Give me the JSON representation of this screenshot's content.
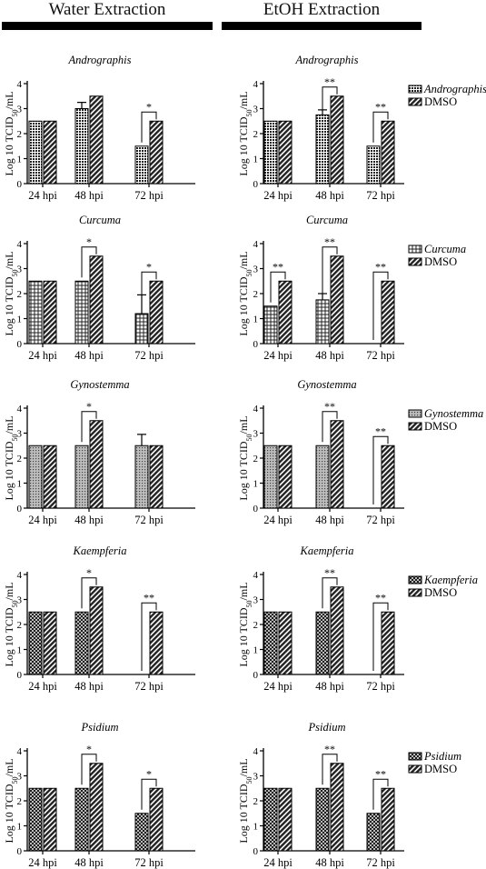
{
  "headers": {
    "water": "Water Extraction",
    "etoh": "EtOH Extraction"
  },
  "legend_dmso": "DMSO",
  "chart_data": [
    {
      "type": "bar",
      "panel": "water-andrographis",
      "title": "Andrographis",
      "ylabel": "Log 10 TCID50/mL",
      "ylim": [
        0,
        4
      ],
      "yticks": [
        "0",
        "1",
        "2",
        "3",
        "4"
      ],
      "categories": [
        "24 hpi",
        "48 hpi",
        "72 hpi"
      ],
      "series": [
        {
          "values": [
            2.5,
            3.0,
            1.5
          ],
          "errors": [
            0,
            0.25,
            0
          ]
        },
        {
          "values": [
            2.5,
            3.5,
            2.5
          ],
          "errors": [
            0,
            0,
            0
          ]
        }
      ],
      "significance": [
        {
          "category": "72 hpi",
          "label": "*"
        }
      ]
    },
    {
      "type": "bar",
      "panel": "etoh-andrographis",
      "title": "Andrographis",
      "ylabel": "Log 10 TCID50/mL",
      "ylim": [
        0,
        4
      ],
      "yticks": [
        "0",
        "1",
        "2",
        "3",
        "4"
      ],
      "categories": [
        "24 hpi",
        "48 hpi",
        "72 hpi"
      ],
      "series": [
        {
          "name": "Andrographis",
          "values": [
            2.5,
            2.75,
            1.5
          ],
          "errors": [
            0,
            0.2,
            0
          ]
        },
        {
          "name": "DMSO",
          "values": [
            2.5,
            3.5,
            2.5
          ],
          "errors": [
            0,
            0,
            0
          ]
        }
      ],
      "significance": [
        {
          "category": "48 hpi",
          "label": "**"
        },
        {
          "category": "72 hpi",
          "label": "**"
        }
      ]
    },
    {
      "type": "bar",
      "panel": "water-curcuma",
      "title": "Curcuma",
      "ylabel": "Log 10 TCID50/mL",
      "ylim": [
        0,
        4
      ],
      "yticks": [
        "0",
        "1",
        "2",
        "3",
        "4"
      ],
      "categories": [
        "24 hpi",
        "48 hpi",
        "72 hpi"
      ],
      "series": [
        {
          "values": [
            2.5,
            2.5,
            1.2
          ],
          "errors": [
            0,
            0,
            0.75
          ]
        },
        {
          "values": [
            2.5,
            3.5,
            2.5
          ],
          "errors": [
            0,
            0,
            0
          ]
        }
      ],
      "significance": [
        {
          "category": "48 hpi",
          "label": "*"
        },
        {
          "category": "72 hpi",
          "label": "*"
        }
      ]
    },
    {
      "type": "bar",
      "panel": "etoh-curcuma",
      "title": "Curcuma",
      "ylabel": "Log 10 TCID50/mL",
      "ylim": [
        0,
        4
      ],
      "yticks": [
        "0",
        "1",
        "2",
        "3",
        "4"
      ],
      "categories": [
        "24 hpi",
        "48 hpi",
        "72 hpi"
      ],
      "series": [
        {
          "name": "Curcuma",
          "values": [
            1.5,
            1.75,
            0
          ],
          "errors": [
            0,
            0.25,
            0
          ]
        },
        {
          "name": "DMSO",
          "values": [
            2.5,
            3.5,
            2.5
          ],
          "errors": [
            0,
            0,
            0
          ]
        }
      ],
      "significance": [
        {
          "category": "24 hpi",
          "label": "**"
        },
        {
          "category": "48 hpi",
          "label": "**"
        },
        {
          "category": "72 hpi",
          "label": "**"
        }
      ]
    },
    {
      "type": "bar",
      "panel": "water-gynostemma",
      "title": "Gynostemma",
      "ylabel": "Log 10 TCID50/mL",
      "ylim": [
        0,
        4
      ],
      "yticks": [
        "0",
        "1",
        "2",
        "3",
        "4"
      ],
      "categories": [
        "24 hpi",
        "48 hpi",
        "72 hpi"
      ],
      "series": [
        {
          "values": [
            2.5,
            2.5,
            2.5
          ],
          "errors": [
            0,
            0,
            0.45
          ]
        },
        {
          "values": [
            2.5,
            3.5,
            2.5
          ],
          "errors": [
            0,
            0,
            0
          ]
        }
      ],
      "significance": [
        {
          "category": "48 hpi",
          "label": "*"
        }
      ]
    },
    {
      "type": "bar",
      "panel": "etoh-gynostemma",
      "title": "Gynostemma",
      "ylabel": "Log 10 TCID50/mL",
      "ylim": [
        0,
        4
      ],
      "yticks": [
        "0",
        "1",
        "2",
        "3",
        "4"
      ],
      "categories": [
        "24 hpi",
        "48 hpi",
        "72 hpi"
      ],
      "series": [
        {
          "name": "Gynostemma",
          "values": [
            2.5,
            2.5,
            0
          ],
          "errors": [
            0,
            0,
            0
          ]
        },
        {
          "name": "DMSO",
          "values": [
            2.5,
            3.5,
            2.5
          ],
          "errors": [
            0,
            0,
            0
          ]
        }
      ],
      "significance": [
        {
          "category": "48 hpi",
          "label": "**"
        },
        {
          "category": "72 hpi",
          "label": "**"
        }
      ]
    },
    {
      "type": "bar",
      "panel": "water-kaempferia",
      "title": "Kaempferia",
      "ylabel": "Log 10 TCID50/mL",
      "ylim": [
        0,
        4
      ],
      "yticks": [
        "0",
        "1",
        "2",
        "3",
        "4"
      ],
      "categories": [
        "24 hpi",
        "48 hpi",
        "72 hpi"
      ],
      "series": [
        {
          "values": [
            2.5,
            2.5,
            0
          ],
          "errors": [
            0,
            0,
            0
          ]
        },
        {
          "values": [
            2.5,
            3.5,
            2.5
          ],
          "errors": [
            0,
            0,
            0
          ]
        }
      ],
      "significance": [
        {
          "category": "48 hpi",
          "label": "*"
        },
        {
          "category": "72 hpi",
          "label": "**"
        }
      ]
    },
    {
      "type": "bar",
      "panel": "etoh-kaempferia",
      "title": "Kaempferia",
      "ylabel": "Log 10 TCID50/mL",
      "ylim": [
        0,
        4
      ],
      "yticks": [
        "0",
        "1",
        "2",
        "3",
        "4"
      ],
      "categories": [
        "24 hpi",
        "48 hpi",
        "72 hpi"
      ],
      "series": [
        {
          "name": "Kaempferia",
          "values": [
            2.5,
            2.5,
            0
          ],
          "errors": [
            0,
            0,
            0
          ]
        },
        {
          "name": "DMSO",
          "values": [
            2.5,
            3.5,
            2.5
          ],
          "errors": [
            0,
            0,
            0
          ]
        }
      ],
      "significance": [
        {
          "category": "48 hpi",
          "label": "**"
        },
        {
          "category": "72 hpi",
          "label": "**"
        }
      ]
    },
    {
      "type": "bar",
      "panel": "water-psidium",
      "title": "Psidium",
      "ylabel": "Log 10 TCID50/mL",
      "ylim": [
        0,
        4
      ],
      "yticks": [
        "0",
        "1",
        "2",
        "3",
        "4"
      ],
      "categories": [
        "24 hpi",
        "48 hpi",
        "72 hpi"
      ],
      "series": [
        {
          "values": [
            2.5,
            2.5,
            1.5
          ],
          "errors": [
            0,
            0,
            0
          ]
        },
        {
          "values": [
            2.5,
            3.5,
            2.5
          ],
          "errors": [
            0,
            0,
            0
          ]
        }
      ],
      "significance": [
        {
          "category": "48 hpi",
          "label": "*"
        },
        {
          "category": "72 hpi",
          "label": "*"
        }
      ]
    },
    {
      "type": "bar",
      "panel": "etoh-psidium",
      "title": "Psidium",
      "ylabel": "Log 10 TCID50/mL",
      "ylim": [
        0,
        4
      ],
      "yticks": [
        "0",
        "1",
        "2",
        "3",
        "4"
      ],
      "categories": [
        "24 hpi",
        "48 hpi",
        "72 hpi"
      ],
      "series": [
        {
          "name": "Psidium",
          "values": [
            2.5,
            2.5,
            1.5
          ],
          "errors": [
            0,
            0,
            0
          ]
        },
        {
          "name": "DMSO",
          "values": [
            2.5,
            3.5,
            2.5
          ],
          "errors": [
            0,
            0,
            0
          ]
        }
      ],
      "significance": [
        {
          "category": "48 hpi",
          "label": "**"
        },
        {
          "category": "72 hpi",
          "label": "**"
        }
      ]
    }
  ]
}
